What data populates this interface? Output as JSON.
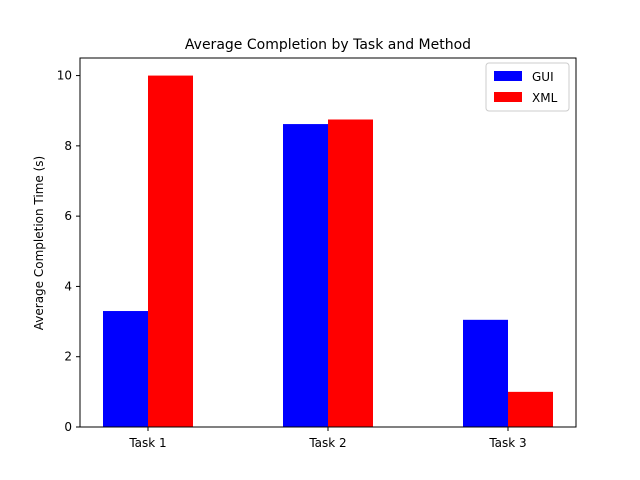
{
  "chart_data": {
    "type": "bar",
    "title": "Average Completion by Task and Method",
    "xlabel": "",
    "ylabel": "Average Completion Time (s)",
    "categories": [
      "Task 1",
      "Task 2",
      "Task 3"
    ],
    "series": [
      {
        "name": "GUI",
        "values": [
          3.3,
          8.62,
          3.05
        ],
        "color": "#0000ff"
      },
      {
        "name": "XML",
        "values": [
          10.0,
          8.75,
          1.0
        ],
        "color": "#ff0000"
      }
    ],
    "ylim": [
      0,
      10.5
    ],
    "yticks": [
      "0",
      "2",
      "4",
      "6",
      "8",
      "10"
    ],
    "grid": false,
    "legend_position": "top-right"
  }
}
